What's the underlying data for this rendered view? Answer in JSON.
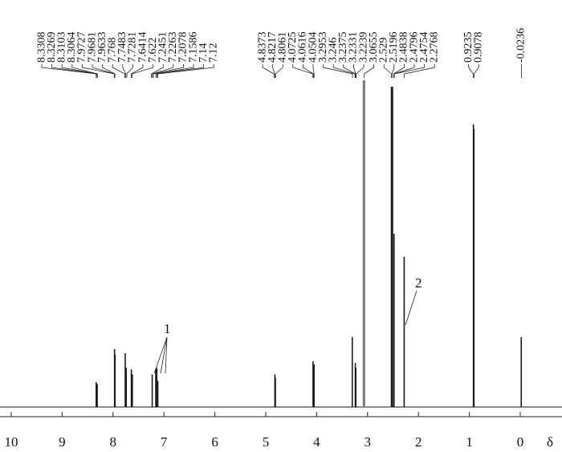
{
  "chart_data": {
    "type": "nmr",
    "peak_labels": [
      8.3308,
      8.3269,
      8.3103,
      8.3064,
      7.9727,
      7.9681,
      7.9633,
      7.768,
      7.7483,
      7.7281,
      7.6414,
      7.622,
      7.2451,
      7.2263,
      7.2078,
      7.1586,
      7.14,
      7.12,
      4.8373,
      4.8217,
      4.8061,
      4.0725,
      4.0616,
      4.0504,
      3.2953,
      3.246,
      3.2375,
      3.2331,
      3.2239,
      3.0655,
      2.529,
      2.5196,
      2.4838,
      2.4796,
      2.4754,
      2.2768,
      0.9235,
      0.9078,
      -0.0236
    ],
    "x": [
      8.33,
      8.31,
      7.97,
      7.96,
      7.76,
      7.74,
      7.64,
      7.62,
      7.23,
      7.16,
      7.14,
      7.12,
      4.82,
      4.81,
      4.07,
      4.05,
      3.3,
      3.24,
      3.23,
      3.07,
      2.52,
      2.48,
      2.28,
      0.92,
      0.91,
      -0.02
    ],
    "values": [
      7.6,
      7.0,
      17.7,
      16.0,
      16.5,
      12.0,
      11.5,
      10.0,
      10.0,
      11.5,
      12.0,
      8.0,
      10.0,
      9.0,
      14.0,
      13.0,
      21.4,
      13.5,
      12.0,
      100,
      98,
      53,
      46,
      86.5,
      85,
      21.4
    ],
    "xlim": [
      10.22,
      -0.82
    ],
    "xticks": [
      10,
      9,
      8,
      7,
      6,
      5,
      4,
      3,
      2,
      1,
      0
    ],
    "ylim": [
      0,
      100
    ],
    "x_label": "δ",
    "annotations": [
      "1",
      "2"
    ],
    "color": "#1a1a1a"
  }
}
